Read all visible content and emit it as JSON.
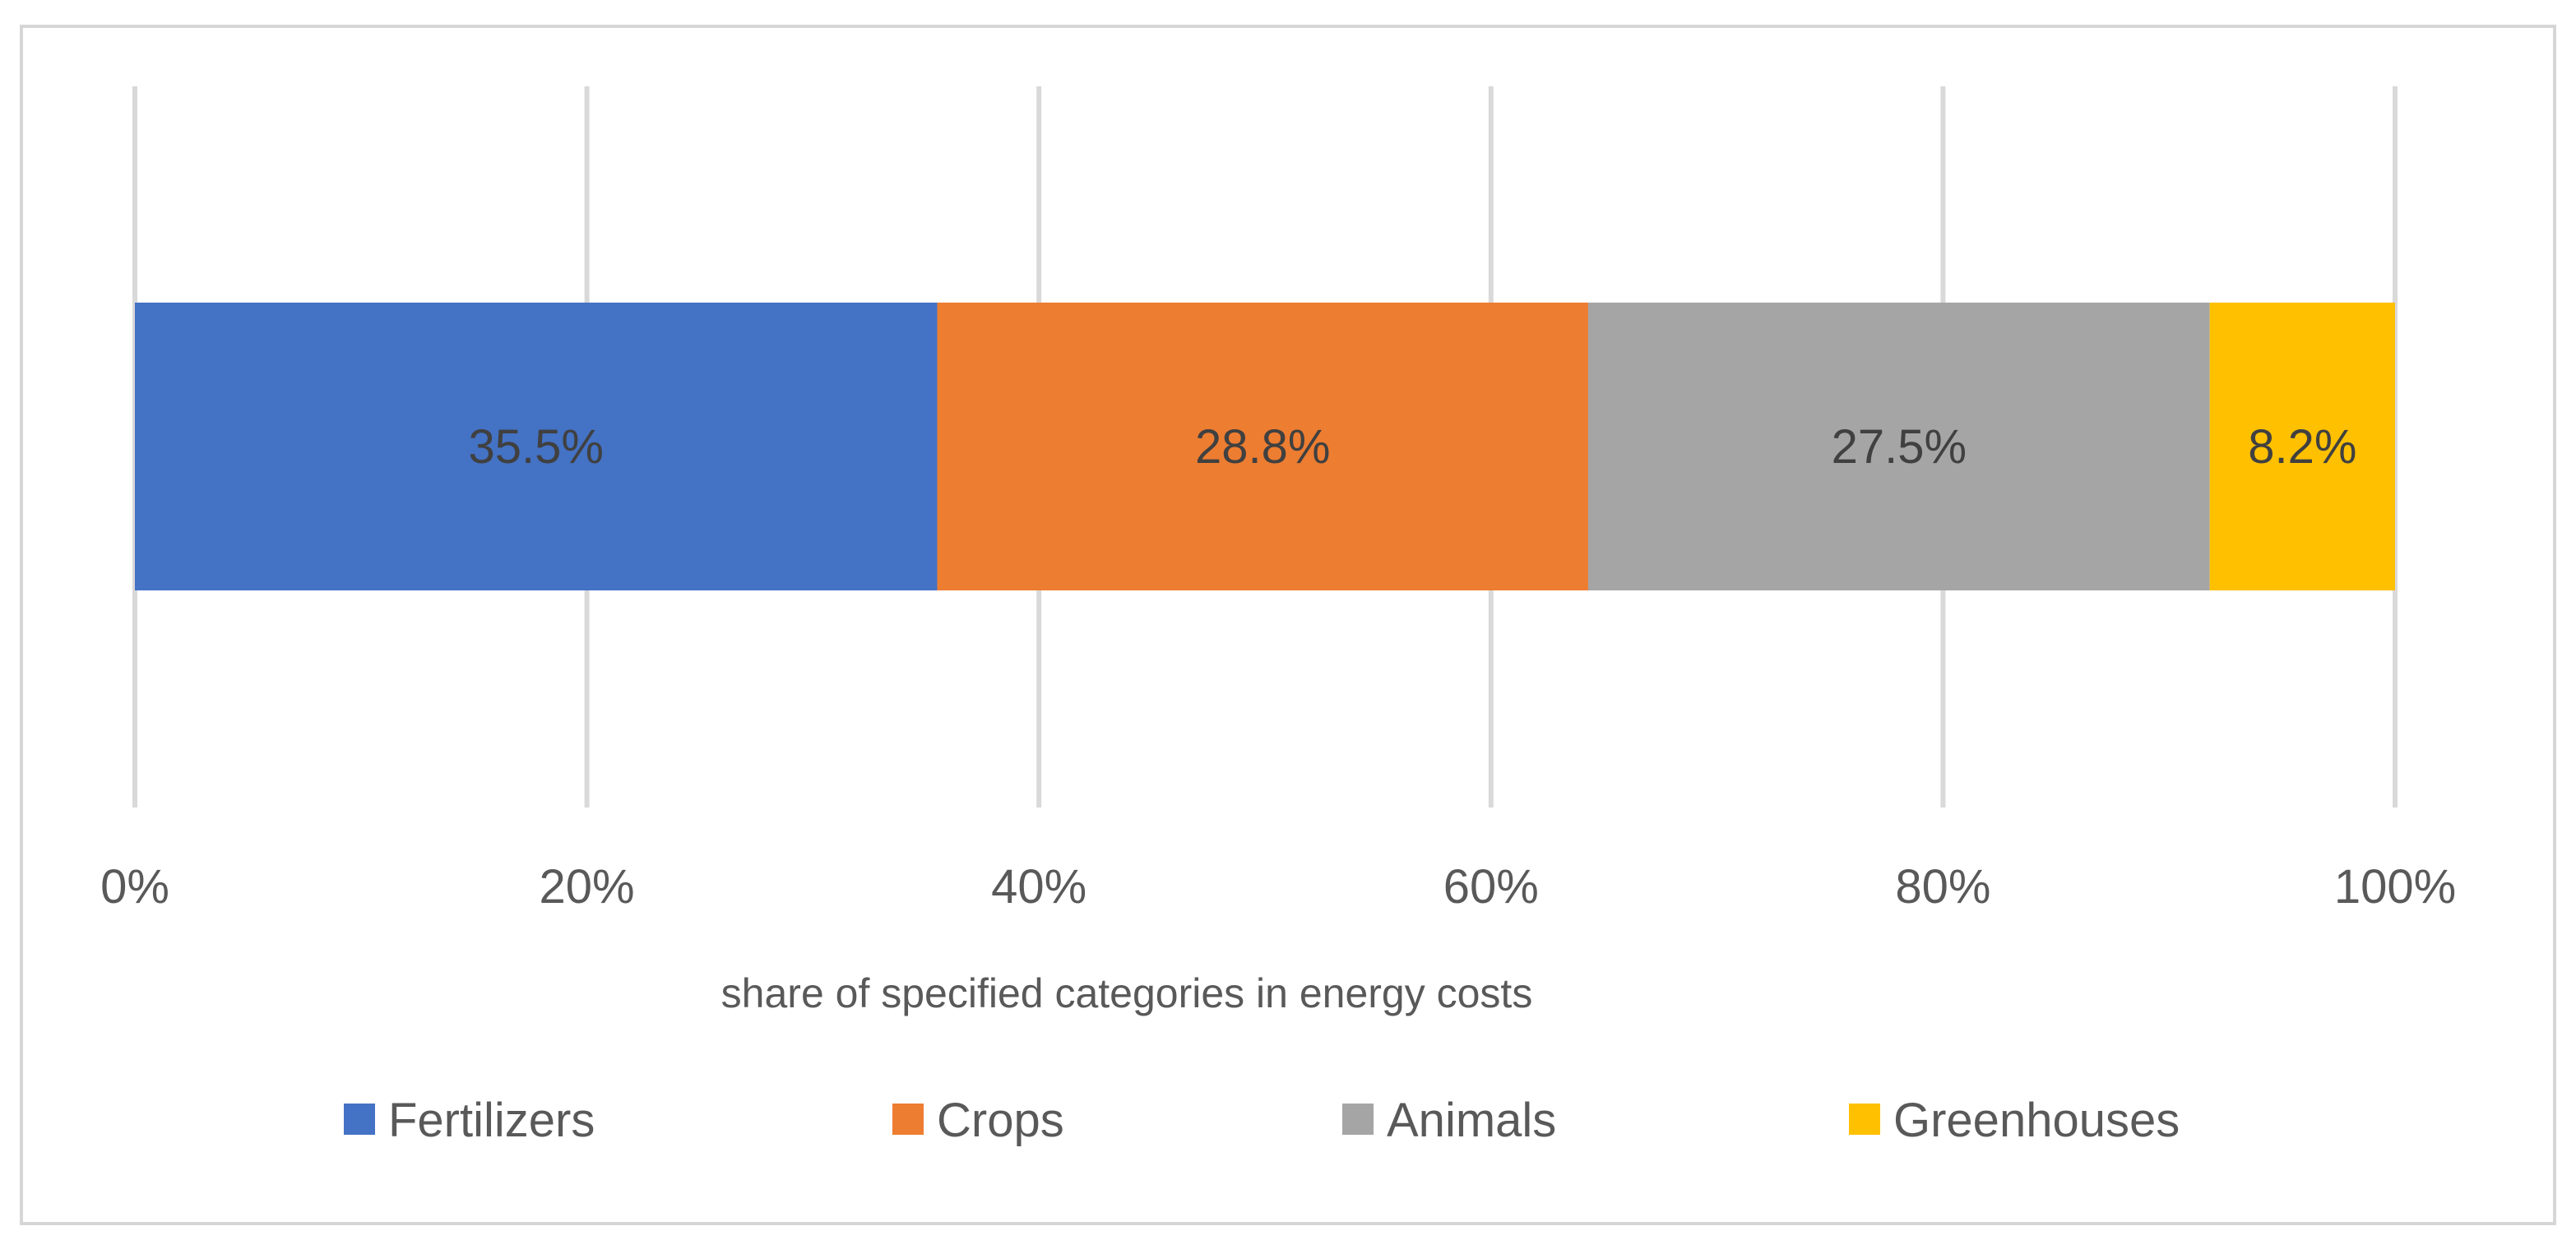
{
  "chart_data": {
    "type": "bar",
    "orientation": "horizontal",
    "stacked": true,
    "categories": [
      ""
    ],
    "series": [
      {
        "name": "Fertilizers",
        "values": [
          35.5
        ],
        "label": "35.5%",
        "color": "#4472C4"
      },
      {
        "name": "Crops",
        "values": [
          28.8
        ],
        "label": "28.8%",
        "color": "#ED7D31"
      },
      {
        "name": "Animals",
        "values": [
          27.5
        ],
        "label": "27.5%",
        "color": "#A5A5A5"
      },
      {
        "name": "Greenhouses",
        "values": [
          8.2
        ],
        "label": "8.2%",
        "color": "#FFC000"
      }
    ],
    "xticks": [
      {
        "value": 0,
        "label": "0%"
      },
      {
        "value": 20,
        "label": "20%"
      },
      {
        "value": 40,
        "label": "40%"
      },
      {
        "value": 60,
        "label": "60%"
      },
      {
        "value": 80,
        "label": "80%"
      },
      {
        "value": 100,
        "label": "100%"
      }
    ],
    "xlim": [
      0,
      100
    ],
    "xlabel": "share of specified categories in energy costs",
    "grid": "vertical",
    "legend": "bottom"
  },
  "colors": {
    "grid": "#d9d9d9",
    "frame": "#d6d6d6",
    "text": "#595959"
  }
}
